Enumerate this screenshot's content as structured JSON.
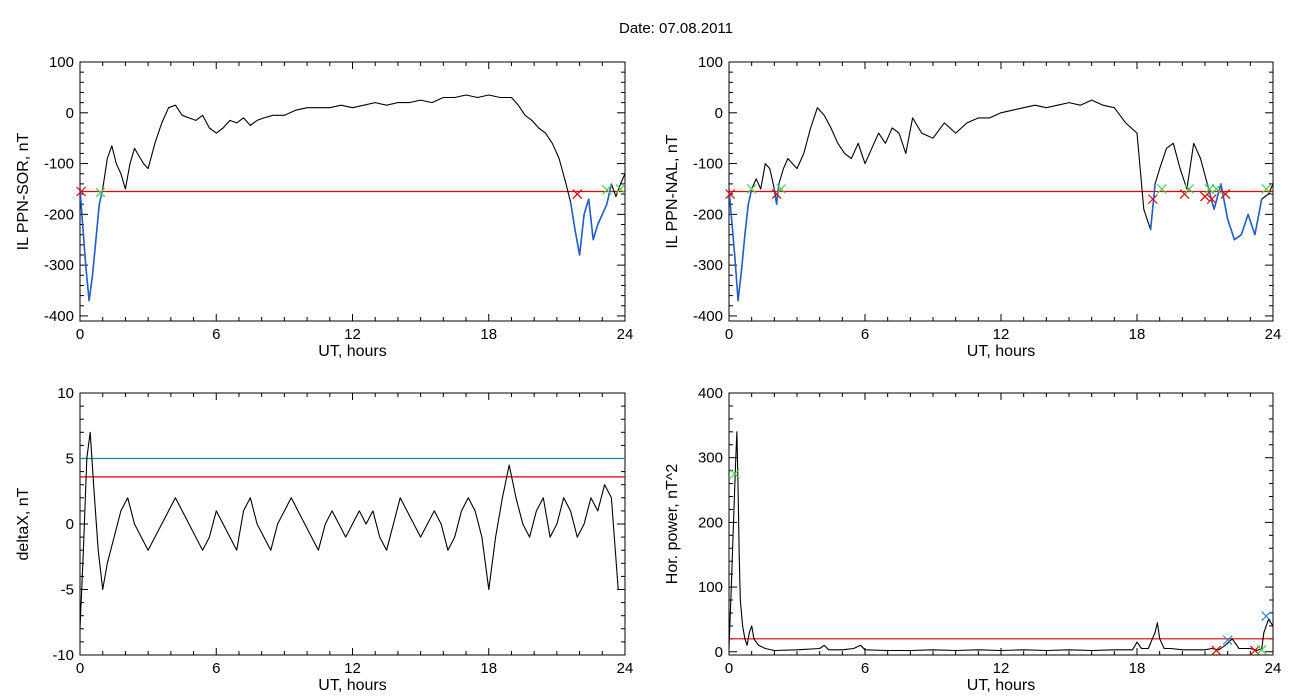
{
  "title": "Date:  07.08.2011",
  "colors": {
    "data_line": "#000000",
    "highlight": "#1f5fcc",
    "threshold_red": "#e00000",
    "threshold_teal": "#138a8a",
    "marker_red": "#e00000",
    "marker_green": "#4fd04f",
    "marker_blue": "#2a7fd8"
  },
  "chart_data": [
    {
      "id": "panel1",
      "type": "line",
      "xlabel": "UT, hours",
      "ylabel": "IL PPN-SOR, nT",
      "xlim": [
        0,
        24
      ],
      "ylim": [
        -410,
        100
      ],
      "xticks": [
        0,
        6,
        12,
        18,
        24
      ],
      "yticks": [
        -400,
        -300,
        -200,
        -100,
        0,
        100
      ],
      "hlines": [
        {
          "y": -155,
          "color": "threshold_red"
        }
      ],
      "series": [
        {
          "x": [
            0,
            0.25,
            0.4,
            0.55,
            0.7,
            0.85,
            1.0,
            1.2,
            1.4,
            1.6,
            1.8,
            2.0,
            2.2,
            2.4,
            2.6,
            2.8,
            3.0,
            3.3,
            3.6,
            3.9,
            4.2,
            4.5,
            4.8,
            5.1,
            5.4,
            5.7,
            6.0,
            6.3,
            6.6,
            6.9,
            7.2,
            7.5,
            7.8,
            8.1,
            8.5,
            9.0,
            9.5,
            10.0,
            10.5,
            11.0,
            11.5,
            12.0,
            12.5,
            13.0,
            13.5,
            14.0,
            14.5,
            15.0,
            15.5,
            16.0,
            16.5,
            17.0,
            17.5,
            18.0,
            18.5,
            19.0,
            19.3,
            19.6,
            19.9,
            20.2,
            20.5,
            20.8,
            21.1,
            21.4,
            21.6,
            21.8,
            22.0,
            22.2,
            22.4,
            22.6,
            22.8,
            23.0,
            23.2,
            23.4,
            23.6,
            23.8,
            24.0
          ],
          "y": [
            -150,
            -300,
            -370,
            -320,
            -250,
            -180,
            -150,
            -90,
            -65,
            -100,
            -120,
            -150,
            -100,
            -70,
            -85,
            -100,
            -110,
            -60,
            -20,
            10,
            15,
            -5,
            -10,
            -15,
            -5,
            -30,
            -40,
            -30,
            -15,
            -20,
            -10,
            -25,
            -15,
            -10,
            -5,
            -5,
            5,
            10,
            10,
            10,
            15,
            10,
            15,
            20,
            15,
            20,
            20,
            25,
            20,
            30,
            30,
            35,
            30,
            35,
            30,
            30,
            15,
            -5,
            -15,
            -30,
            -40,
            -60,
            -90,
            -140,
            -175,
            -230,
            -280,
            -200,
            -170,
            -250,
            -220,
            -200,
            -180,
            -140,
            -165,
            -140,
            -120
          ],
          "highlight_ranges": [
            [
              0,
              1.0
            ],
            [
              21.6,
              23.4
            ]
          ]
        }
      ],
      "markers": [
        {
          "x": 0.05,
          "y": -155,
          "symbol": "x",
          "color": "marker_red"
        },
        {
          "x": 0.9,
          "y": -157,
          "symbol": "x",
          "color": "marker_green"
        },
        {
          "x": 21.9,
          "y": -160,
          "symbol": "x",
          "color": "marker_red"
        },
        {
          "x": 23.2,
          "y": -152,
          "symbol": "x",
          "color": "marker_green"
        },
        {
          "x": 23.8,
          "y": -150,
          "symbol": "x",
          "color": "marker_green"
        }
      ]
    },
    {
      "id": "panel2",
      "type": "line",
      "xlabel": "UT, hours",
      "ylabel": "IL PPN-NAL, nT",
      "xlim": [
        0,
        24
      ],
      "ylim": [
        -410,
        100
      ],
      "xticks": [
        0,
        6,
        12,
        18,
        24
      ],
      "yticks": [
        -400,
        -300,
        -200,
        -100,
        0,
        100
      ],
      "hlines": [
        {
          "y": -155,
          "color": "threshold_red"
        }
      ],
      "series": [
        {
          "x": [
            0,
            0.25,
            0.4,
            0.55,
            0.7,
            0.85,
            1.0,
            1.2,
            1.4,
            1.6,
            1.8,
            2.0,
            2.1,
            2.2,
            2.4,
            2.6,
            2.8,
            3.0,
            3.3,
            3.6,
            3.9,
            4.2,
            4.5,
            4.8,
            5.1,
            5.4,
            5.7,
            6.0,
            6.3,
            6.6,
            6.9,
            7.2,
            7.5,
            7.8,
            8.1,
            8.5,
            9.0,
            9.5,
            10.0,
            10.5,
            11.0,
            11.5,
            12.0,
            12.5,
            13.0,
            13.5,
            14.0,
            14.5,
            15.0,
            15.5,
            16.0,
            16.5,
            17.0,
            17.5,
            18.0,
            18.3,
            18.6,
            18.8,
            19.0,
            19.3,
            19.6,
            19.9,
            20.2,
            20.5,
            20.8,
            21.1,
            21.4,
            21.7,
            22.0,
            22.3,
            22.6,
            22.9,
            23.2,
            23.5,
            23.8,
            24.0
          ],
          "y": [
            -150,
            -280,
            -370,
            -310,
            -240,
            -180,
            -150,
            -130,
            -150,
            -100,
            -110,
            -150,
            -180,
            -140,
            -110,
            -90,
            -100,
            -110,
            -80,
            -30,
            10,
            -5,
            -30,
            -60,
            -80,
            -90,
            -60,
            -100,
            -70,
            -40,
            -60,
            -30,
            -40,
            -80,
            -10,
            -40,
            -50,
            -20,
            -40,
            -20,
            -10,
            -10,
            0,
            5,
            10,
            15,
            10,
            15,
            20,
            15,
            25,
            15,
            10,
            -20,
            -40,
            -190,
            -230,
            -140,
            -110,
            -70,
            -60,
            -110,
            -150,
            -60,
            -90,
            -140,
            -190,
            -140,
            -210,
            -250,
            -240,
            -200,
            -240,
            -170,
            -160,
            -140
          ],
          "highlight_ranges": [
            [
              0,
              1.0
            ],
            [
              2.0,
              2.3
            ],
            [
              18.5,
              18.9
            ],
            [
              20.0,
              20.2
            ],
            [
              21.0,
              23.6
            ]
          ]
        }
      ],
      "markers": [
        {
          "x": 0.05,
          "y": -160,
          "symbol": "x",
          "color": "marker_red"
        },
        {
          "x": 1.0,
          "y": -150,
          "symbol": "x",
          "color": "marker_green"
        },
        {
          "x": 2.1,
          "y": -160,
          "symbol": "x",
          "color": "marker_red"
        },
        {
          "x": 2.3,
          "y": -150,
          "symbol": "x",
          "color": "marker_green"
        },
        {
          "x": 18.7,
          "y": -170,
          "symbol": "x",
          "color": "marker_red"
        },
        {
          "x": 19.1,
          "y": -150,
          "symbol": "x",
          "color": "marker_green"
        },
        {
          "x": 20.1,
          "y": -160,
          "symbol": "x",
          "color": "marker_red"
        },
        {
          "x": 20.3,
          "y": -150,
          "symbol": "x",
          "color": "marker_green"
        },
        {
          "x": 21.0,
          "y": -165,
          "symbol": "x",
          "color": "marker_red"
        },
        {
          "x": 21.2,
          "y": -150,
          "symbol": "x",
          "color": "marker_green"
        },
        {
          "x": 21.3,
          "y": -170,
          "symbol": "x",
          "color": "marker_red"
        },
        {
          "x": 21.5,
          "y": -150,
          "symbol": "x",
          "color": "marker_green"
        },
        {
          "x": 21.9,
          "y": -160,
          "symbol": "x",
          "color": "marker_red"
        },
        {
          "x": 23.7,
          "y": -150,
          "symbol": "x",
          "color": "marker_green"
        }
      ]
    },
    {
      "id": "panel3",
      "type": "line",
      "xlabel": "UT, hours",
      "ylabel": "deltaX, nT",
      "xlim": [
        0,
        24
      ],
      "ylim": [
        -10,
        10
      ],
      "xticks": [
        0,
        6,
        12,
        18,
        24
      ],
      "yticks": [
        -10,
        -5,
        0,
        5,
        10
      ],
      "hlines": [
        {
          "y": 5,
          "color": "threshold_teal"
        },
        {
          "y": 3.6,
          "color": "threshold_red"
        }
      ],
      "series": [
        {
          "x": [
            0,
            0.15,
            0.3,
            0.45,
            0.6,
            0.8,
            1.0,
            1.2,
            1.5,
            1.8,
            2.1,
            2.4,
            2.7,
            3.0,
            3.3,
            3.6,
            3.9,
            4.2,
            4.5,
            4.8,
            5.1,
            5.4,
            5.7,
            6.0,
            6.3,
            6.6,
            6.9,
            7.2,
            7.5,
            7.8,
            8.1,
            8.4,
            8.7,
            9.0,
            9.3,
            9.6,
            9.9,
            10.2,
            10.5,
            10.8,
            11.1,
            11.4,
            11.7,
            12.0,
            12.3,
            12.6,
            12.9,
            13.2,
            13.5,
            13.8,
            14.1,
            14.4,
            14.7,
            15.0,
            15.3,
            15.6,
            15.9,
            16.2,
            16.5,
            16.8,
            17.1,
            17.4,
            17.7,
            18.0,
            18.3,
            18.6,
            18.9,
            19.2,
            19.5,
            19.8,
            20.1,
            20.4,
            20.7,
            21.0,
            21.3,
            21.6,
            21.9,
            22.2,
            22.5,
            22.8,
            23.1,
            23.4,
            23.7,
            24.0
          ],
          "y": [
            -8,
            -2,
            5,
            7,
            3,
            -2,
            -5,
            -3,
            -1,
            1,
            2,
            0,
            -1,
            -2,
            -1,
            0,
            1,
            2,
            1,
            0,
            -1,
            -2,
            -1,
            1,
            0,
            -1,
            -2,
            1,
            2,
            0,
            -1,
            -2,
            0,
            1,
            2,
            1,
            0,
            -1,
            -2,
            0,
            1,
            0,
            -1,
            0,
            1,
            0,
            1,
            -1,
            -2,
            0,
            2,
            1,
            0,
            -1,
            0,
            1,
            0,
            -2,
            -1,
            1,
            2,
            1,
            -1,
            -5,
            -1,
            2,
            4.5,
            2,
            0,
            -1,
            1,
            2,
            -1,
            0,
            2,
            1,
            -1,
            0,
            2,
            1,
            3,
            2,
            -5,
            -5
          ],
          "highlight_ranges": []
        }
      ],
      "markers": []
    },
    {
      "id": "panel4",
      "type": "line",
      "xlabel": "UT, hours",
      "ylabel": "Hor. power, nT^2",
      "xlim": [
        0,
        24
      ],
      "ylim": [
        -5,
        400
      ],
      "xticks": [
        0,
        6,
        12,
        18,
        24
      ],
      "yticks": [
        0,
        100,
        200,
        300,
        400
      ],
      "hlines": [
        {
          "y": 20,
          "color": "threshold_red"
        }
      ],
      "series": [
        {
          "x": [
            0,
            0.1,
            0.2,
            0.3,
            0.35,
            0.4,
            0.45,
            0.5,
            0.6,
            0.7,
            0.8,
            0.9,
            1.0,
            1.1,
            1.3,
            1.6,
            2.0,
            3.0,
            4.0,
            4.2,
            4.4,
            5.0,
            5.5,
            5.8,
            6.0,
            7.0,
            8.0,
            9.0,
            10.0,
            11.0,
            12.0,
            13.0,
            14.0,
            15.0,
            16.0,
            17.0,
            17.8,
            18.0,
            18.2,
            18.5,
            18.8,
            18.9,
            19.0,
            19.2,
            19.5,
            20.0,
            20.5,
            21.0,
            21.3,
            21.6,
            21.9,
            22.2,
            22.5,
            23.0,
            23.3,
            23.5,
            23.6,
            23.8,
            24.0
          ],
          "y": [
            5,
            100,
            200,
            300,
            340,
            250,
            150,
            80,
            40,
            20,
            10,
            30,
            40,
            20,
            10,
            5,
            2,
            3,
            5,
            10,
            3,
            3,
            5,
            10,
            3,
            2,
            2,
            3,
            2,
            3,
            2,
            3,
            2,
            3,
            2,
            3,
            3,
            15,
            5,
            5,
            30,
            45,
            20,
            5,
            5,
            3,
            3,
            3,
            5,
            3,
            10,
            20,
            5,
            5,
            2,
            5,
            30,
            50,
            40
          ],
          "highlight_ranges": []
        }
      ],
      "markers": [
        {
          "x": 0.25,
          "y": 275,
          "symbol": "x",
          "color": "marker_green"
        },
        {
          "x": 21.5,
          "y": 2,
          "symbol": "x",
          "color": "marker_red"
        },
        {
          "x": 22.0,
          "y": 18,
          "symbol": "x",
          "color": "marker_blue"
        },
        {
          "x": 23.2,
          "y": 2,
          "symbol": "x",
          "color": "marker_red"
        },
        {
          "x": 23.5,
          "y": 3,
          "symbol": "x",
          "color": "marker_green"
        },
        {
          "x": 23.7,
          "y": 55,
          "symbol": "x",
          "color": "marker_blue"
        }
      ]
    }
  ]
}
